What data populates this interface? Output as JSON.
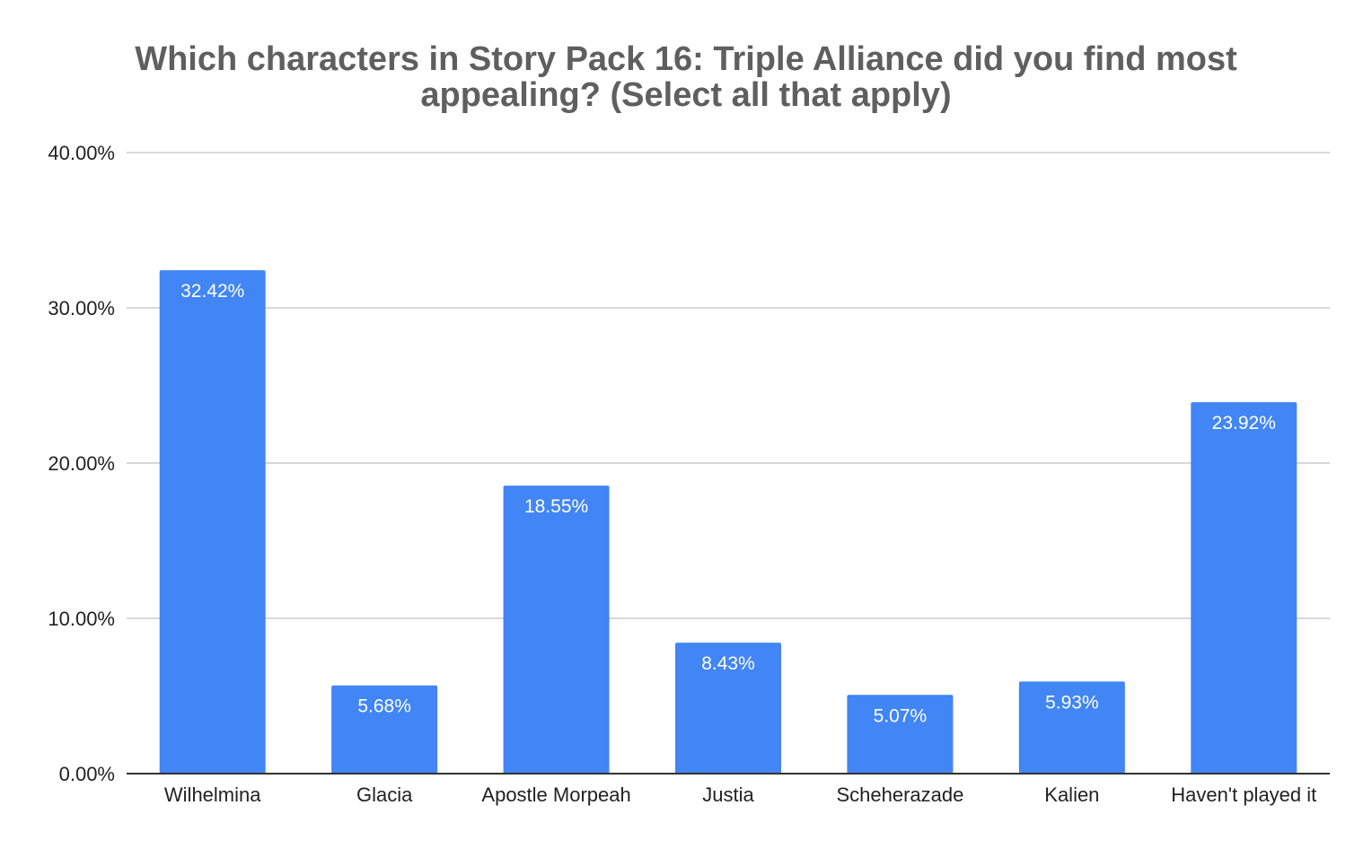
{
  "chart_data": {
    "type": "bar",
    "title_lines": [
      "Which characters in Story Pack 16: Triple Alliance did you find most",
      "appealing? (Select all that apply)"
    ],
    "categories": [
      "Wilhelmina",
      "Glacia",
      "Apostle Morpeah",
      "Justia",
      "Scheherazade",
      "Kalien",
      "Haven't played it"
    ],
    "values": [
      32.42,
      5.68,
      18.55,
      8.43,
      5.07,
      5.93,
      23.92
    ],
    "data_labels": [
      "32.42%",
      "5.68%",
      "18.55%",
      "8.43%",
      "5.07%",
      "5.93%",
      "23.92%"
    ],
    "y_ticks": [
      0,
      10,
      20,
      30,
      40
    ],
    "y_tick_labels": [
      "0.00%",
      "10.00%",
      "20.00%",
      "30.00%",
      "40.00%"
    ],
    "ylim": [
      0,
      40
    ],
    "xlabel": "",
    "ylabel": "",
    "grid": true,
    "legend": "none",
    "bar_color": "#4285f4",
    "gridline_color": "#cccccc",
    "axis_color": "#333333"
  }
}
